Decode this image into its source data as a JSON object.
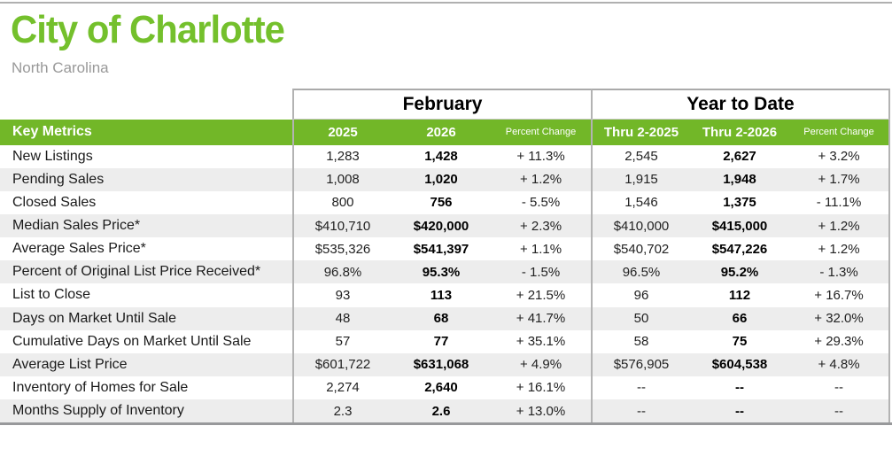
{
  "header": {
    "title": "City of Charlotte",
    "subtitle": "North Carolina"
  },
  "table": {
    "key_metrics_label": "Key Metrics",
    "groups": {
      "february": "February",
      "ytd": "Year to Date"
    },
    "columns": {
      "feb_prior": "2025",
      "feb_current": "2026",
      "feb_change": "Percent Change",
      "ytd_prior": "Thru 2-2025",
      "ytd_current": "Thru 2-2026",
      "ytd_change": "Percent Change"
    },
    "rows": [
      {
        "label": "New Listings",
        "feb_prior": "1,283",
        "feb_current": "1,428",
        "feb_change": "+ 11.3%",
        "ytd_prior": "2,545",
        "ytd_current": "2,627",
        "ytd_change": "+ 3.2%"
      },
      {
        "label": "Pending Sales",
        "feb_prior": "1,008",
        "feb_current": "1,020",
        "feb_change": "+ 1.2%",
        "ytd_prior": "1,915",
        "ytd_current": "1,948",
        "ytd_change": "+ 1.7%"
      },
      {
        "label": "Closed Sales",
        "feb_prior": "800",
        "feb_current": "756",
        "feb_change": "- 5.5%",
        "ytd_prior": "1,546",
        "ytd_current": "1,375",
        "ytd_change": "- 11.1%"
      },
      {
        "label": "Median Sales Price*",
        "feb_prior": "$410,710",
        "feb_current": "$420,000",
        "feb_change": "+ 2.3%",
        "ytd_prior": "$410,000",
        "ytd_current": "$415,000",
        "ytd_change": "+ 1.2%"
      },
      {
        "label": "Average Sales Price*",
        "feb_prior": "$535,326",
        "feb_current": "$541,397",
        "feb_change": "+ 1.1%",
        "ytd_prior": "$540,702",
        "ytd_current": "$547,226",
        "ytd_change": "+ 1.2%"
      },
      {
        "label": "Percent of Original List Price Received*",
        "feb_prior": "96.8%",
        "feb_current": "95.3%",
        "feb_change": "- 1.5%",
        "ytd_prior": "96.5%",
        "ytd_current": "95.2%",
        "ytd_change": "- 1.3%"
      },
      {
        "label": "List to Close",
        "feb_prior": "93",
        "feb_current": "113",
        "feb_change": "+ 21.5%",
        "ytd_prior": "96",
        "ytd_current": "112",
        "ytd_change": "+ 16.7%"
      },
      {
        "label": "Days on Market Until Sale",
        "feb_prior": "48",
        "feb_current": "68",
        "feb_change": "+ 41.7%",
        "ytd_prior": "50",
        "ytd_current": "66",
        "ytd_change": "+ 32.0%"
      },
      {
        "label": "Cumulative Days on Market Until Sale",
        "feb_prior": "57",
        "feb_current": "77",
        "feb_change": "+ 35.1%",
        "ytd_prior": "58",
        "ytd_current": "75",
        "ytd_change": "+ 29.3%"
      },
      {
        "label": "Average List Price",
        "feb_prior": "$601,722",
        "feb_current": "$631,068",
        "feb_change": "+ 4.9%",
        "ytd_prior": "$576,905",
        "ytd_current": "$604,538",
        "ytd_change": "+ 4.8%"
      },
      {
        "label": "Inventory of Homes for Sale",
        "feb_prior": "2,274",
        "feb_current": "2,640",
        "feb_change": "+ 16.1%",
        "ytd_prior": "--",
        "ytd_current": "--",
        "ytd_change": "--"
      },
      {
        "label": "Months Supply of Inventory",
        "feb_prior": "2.3",
        "feb_current": "2.6",
        "feb_change": "+ 13.0%",
        "ytd_prior": "--",
        "ytd_current": "--",
        "ytd_change": "--"
      }
    ]
  },
  "colors": {
    "title_green": "#74c02c",
    "band_green": "#72b728",
    "stripe_gray": "#ededed",
    "divider_gray": "#b3b3b3",
    "bottom_rule_gray": "#98999b"
  }
}
